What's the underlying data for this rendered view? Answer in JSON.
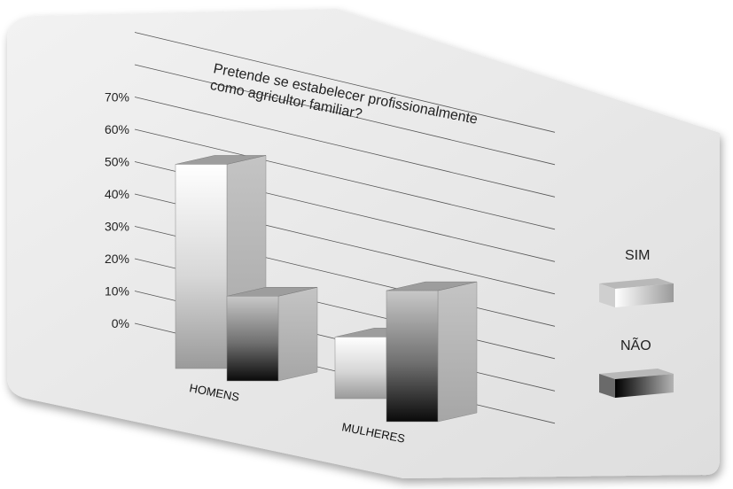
{
  "chart_data": {
    "type": "bar",
    "title_lines": [
      "Pretende se estabelecer profissionalmente",
      "como agricultor familiar?"
    ],
    "categories": [
      "HOMENS",
      "MULHERES"
    ],
    "series": [
      {
        "name": "SIM",
        "values": [
          53,
          16
        ]
      },
      {
        "name": "NÃO",
        "values": [
          22,
          34
        ]
      }
    ],
    "yticks": [
      "0%",
      "10%",
      "20%",
      "30%",
      "40%",
      "50%",
      "60%",
      "70%"
    ],
    "ylim": [
      0,
      70
    ],
    "grid": true,
    "legend": "right"
  },
  "colors": {
    "panel": "#e6e6e6",
    "grid": "#555555",
    "bar_light": "#ffffff",
    "bar_mid": "#a8a8a8",
    "bar_dark": "#000000"
  }
}
